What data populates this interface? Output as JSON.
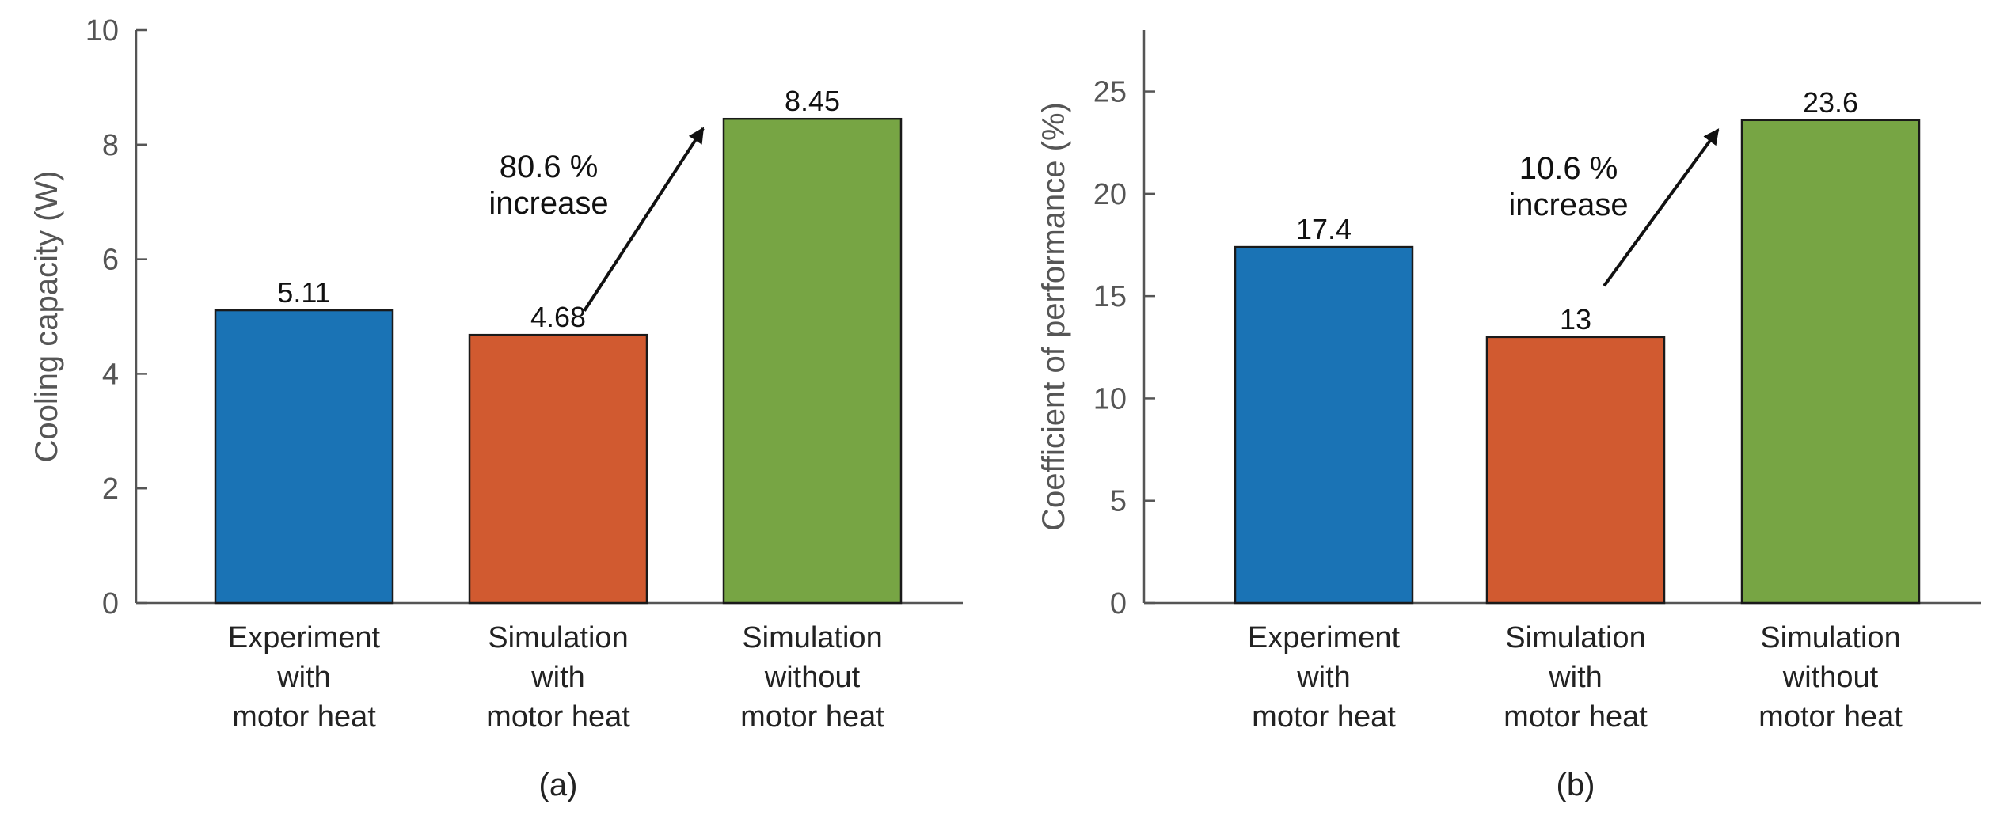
{
  "colors": {
    "blue": "#1a73b5",
    "orange": "#d15a30",
    "green": "#77a544",
    "axis": "#555555",
    "bar_outline": "#1a1a1a"
  },
  "chart_data": [
    {
      "type": "bar",
      "panel_label": "(a)",
      "categories": [
        [
          "Experiment",
          "with",
          "motor heat"
        ],
        [
          "Simulation",
          "with",
          "motor heat"
        ],
        [
          "Simulation",
          "without",
          "motor heat"
        ]
      ],
      "values": [
        5.11,
        4.68,
        8.45
      ],
      "value_labels": [
        "5.11",
        "4.68",
        "8.45"
      ],
      "ylabel": "Cooling capacity (W)",
      "ylim": [
        0,
        10
      ],
      "yticks": [
        0,
        2,
        4,
        6,
        8,
        10
      ],
      "grid": false,
      "annotation": {
        "lines": [
          "80.6 %",
          "increase"
        ],
        "arrow_from_value": 5.1,
        "arrow_to_value": 8.45
      }
    },
    {
      "type": "bar",
      "panel_label": "(b)",
      "categories": [
        [
          "Experiment",
          "with",
          "motor heat"
        ],
        [
          "Simulation",
          "with",
          "motor heat"
        ],
        [
          "Simulation",
          "without",
          "motor heat"
        ]
      ],
      "values": [
        17.4,
        13,
        23.6
      ],
      "value_labels": [
        "17.4",
        "13",
        "23.6"
      ],
      "ylabel": "Coefficient of performance (%)",
      "ylim": [
        0,
        28
      ],
      "yticks": [
        0,
        5,
        10,
        15,
        20,
        25
      ],
      "grid": false,
      "annotation": {
        "lines": [
          "10.6 %",
          "increase"
        ],
        "arrow_from_value": 15.5,
        "arrow_to_value": 23.6
      }
    }
  ]
}
